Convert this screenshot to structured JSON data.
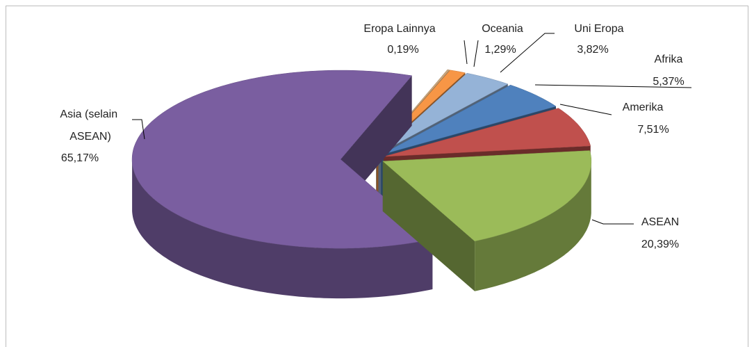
{
  "chart_data": {
    "type": "pie3d",
    "categories": [
      "Eropa Lainnya",
      "Oceania",
      "Uni Eropa",
      "Afrika",
      "Amerika",
      "ASEAN",
      "Asia (selain ASEAN)"
    ],
    "values": [
      0.19,
      1.29,
      3.82,
      5.37,
      7.51,
      20.39,
      65.17
    ],
    "value_labels": [
      "0,19%",
      "1,29%",
      "3,82%",
      "5,37%",
      "7,51%",
      "20,39%",
      "65,17%"
    ],
    "colors": [
      "#c9a57c",
      "#f79646",
      "#95b3d7",
      "#4f81bd",
      "#c0504d",
      "#9bbb59",
      "#7a5ea0"
    ]
  }
}
